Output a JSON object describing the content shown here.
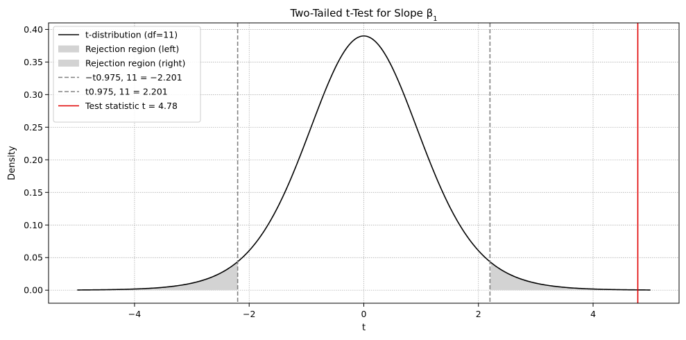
{
  "chart_data": {
    "type": "line",
    "title": "Two-Tailed t-Test for Slope β1",
    "xlabel": "t",
    "ylabel": "Density",
    "xlim": [
      -5.5,
      5.5
    ],
    "ylim": [
      -0.02,
      0.41
    ],
    "xticks": [
      -4,
      -2,
      0,
      2,
      4
    ],
    "xtick_labels": [
      "−4",
      "−2",
      "0",
      "2",
      "4"
    ],
    "yticks": [
      0.0,
      0.05,
      0.1,
      0.15,
      0.2,
      0.25,
      0.3,
      0.35,
      0.4
    ],
    "ytick_labels": [
      "0.00",
      "0.05",
      "0.10",
      "0.15",
      "0.20",
      "0.25",
      "0.30",
      "0.35",
      "0.40"
    ],
    "grid": true,
    "legend_position": "top-left",
    "df": 11,
    "x_range": [
      -5,
      5
    ],
    "critical_value": 2.201,
    "test_statistic": 4.78,
    "series": [
      {
        "name": "t-distribution (df=11)",
        "kind": "curve",
        "color": "#000000"
      },
      {
        "name": "Rejection region (left)",
        "kind": "fill",
        "from": -5,
        "to": -2.201,
        "color": "#d3d3d3"
      },
      {
        "name": "Rejection region (right)",
        "kind": "fill",
        "from": 2.201,
        "to": 5,
        "color": "#d3d3d3"
      },
      {
        "name": "−t0.975, 11 = −2.201",
        "kind": "vline",
        "x": -2.201,
        "color": "#808080",
        "dashed": true
      },
      {
        "name": "t0.975, 11 = 2.201",
        "kind": "vline",
        "x": 2.201,
        "color": "#808080",
        "dashed": true
      },
      {
        "name": "Test statistic t = 4.78",
        "kind": "vline",
        "x": 4.78,
        "color": "#e00000",
        "dashed": false
      }
    ]
  }
}
